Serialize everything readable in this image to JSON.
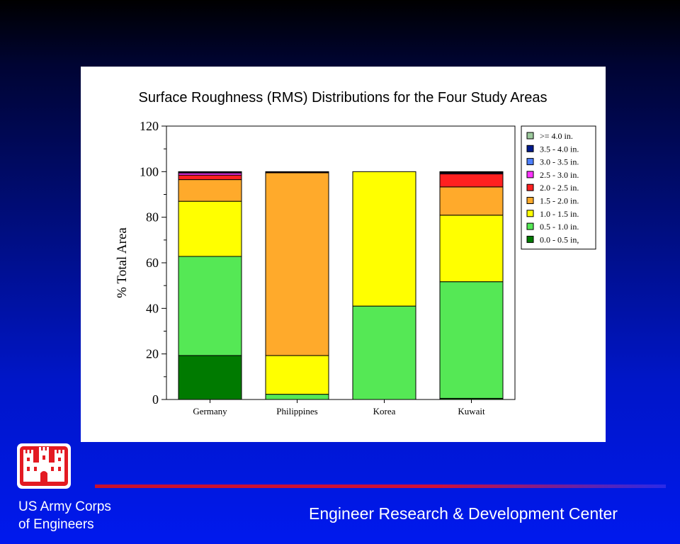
{
  "chart_data": {
    "type": "bar",
    "stacked": true,
    "title": "Surface Roughness (RMS) Distributions for the Four Study Areas",
    "ylabel": "% Total Area",
    "xlabel": "",
    "ylim": [
      0,
      120
    ],
    "yticks": [
      0,
      20,
      40,
      60,
      80,
      100,
      120
    ],
    "categories": [
      "Germany",
      "Philippines",
      "Korea",
      "Kuwait"
    ],
    "legend_position": "right",
    "series": [
      {
        "name": "0.0 - 0.5 in,",
        "color": "#007a00",
        "values": [
          19.3,
          0.0,
          0.0,
          0.5
        ]
      },
      {
        "name": "0.5 - 1.0 in.",
        "color": "#55e855",
        "values": [
          43.5,
          2.3,
          41.0,
          51.2
        ]
      },
      {
        "name": "1.0 - 1.5 in.",
        "color": "#ffff00",
        "values": [
          24.2,
          17.0,
          59.0,
          29.2
        ]
      },
      {
        "name": "1.5 - 2.0 in.",
        "color": "#ffaa2b",
        "values": [
          9.5,
          80.2,
          0.0,
          12.4
        ]
      },
      {
        "name": "2.0 - 2.5 in.",
        "color": "#ff2020",
        "values": [
          2.0,
          0.4,
          0.0,
          5.7
        ]
      },
      {
        "name": "2.5 - 3.0 in.",
        "color": "#ff33ff",
        "values": [
          0.9,
          0.1,
          0.0,
          0.4
        ]
      },
      {
        "name": "3.0 - 3.5 in.",
        "color": "#4d7fff",
        "values": [
          0.4,
          0.0,
          0.0,
          0.3
        ]
      },
      {
        "name": "3.5 - 4.0 in.",
        "color": "#001a8c",
        "values": [
          0.1,
          0.0,
          0.0,
          0.1
        ]
      },
      {
        "name": ">= 4.0 in.",
        "color": "#9cc99c",
        "values": [
          0.1,
          0.0,
          0.0,
          0.2
        ]
      }
    ]
  },
  "footer": {
    "org_line1": "US Army Corps",
    "org_line2": "of Engineers",
    "center": "Engineer Research & Development Center"
  },
  "colors": {
    "logo_red": "#e31a22",
    "divider": "#c8102e"
  }
}
